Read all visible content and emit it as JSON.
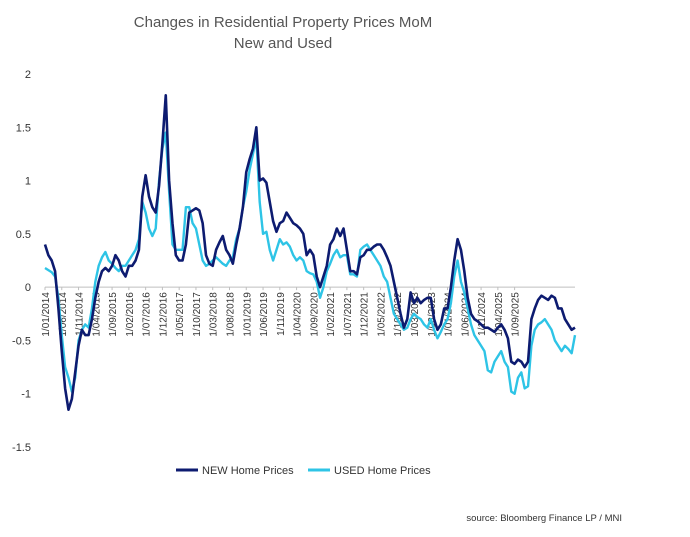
{
  "chart_data": {
    "type": "line",
    "title": "Changes in Residential Property Prices MoM",
    "subtitle": "New and Used",
    "source": "source: Bloomberg Finance LP / MNI",
    "xlabel": "",
    "ylabel": "",
    "ylim": [
      -1.5,
      2
    ],
    "yticks": [
      "2",
      "1.5",
      "1",
      "0.5",
      "0",
      "-0.5",
      "-1",
      "-1.5"
    ],
    "ytick_values": [
      2,
      1.5,
      1,
      0.5,
      0,
      -0.5,
      -1,
      -1.5
    ],
    "xtick_labels": [
      "1/01/2014",
      "1/06/2014",
      "1/11/2014",
      "1/04/2015",
      "1/09/2015",
      "1/02/2016",
      "1/07/2016",
      "1/12/2016",
      "1/05/2017",
      "1/10/2017",
      "1/03/2018",
      "1/08/2018",
      "1/01/2019",
      "1/06/2019",
      "1/11/2019",
      "1/04/2020",
      "1/09/2020",
      "1/02/2021",
      "1/07/2021",
      "1/12/2021",
      "1/05/2022",
      "1/10/2022",
      "1/03/2023",
      "1/08/2023",
      "1/01/2024",
      "1/06/2024",
      "1/11/2024",
      "1/04/2025",
      "1/09/2025"
    ],
    "x_start": "2014-01",
    "x_end": "2025-11",
    "legend_position": "bottom",
    "grid": false,
    "series": [
      {
        "name": "NEW Home Prices",
        "color": "#0d1b70",
        "values": [
          0.4,
          0.3,
          0.25,
          0.15,
          -0.2,
          -0.6,
          -0.95,
          -1.15,
          -1.05,
          -0.8,
          -0.55,
          -0.4,
          -0.45,
          -0.45,
          -0.3,
          -0.1,
          0.05,
          0.15,
          0.18,
          0.15,
          0.2,
          0.3,
          0.25,
          0.15,
          0.1,
          0.2,
          0.2,
          0.25,
          0.35,
          0.85,
          1.05,
          0.85,
          0.75,
          0.7,
          0.95,
          1.35,
          1.8,
          1.0,
          0.6,
          0.3,
          0.25,
          0.25,
          0.4,
          0.7,
          0.72,
          0.74,
          0.72,
          0.6,
          0.3,
          0.22,
          0.2,
          0.35,
          0.42,
          0.48,
          0.35,
          0.3,
          0.22,
          0.4,
          0.55,
          0.75,
          1.08,
          1.2,
          1.3,
          1.5,
          1.0,
          1.02,
          0.98,
          0.8,
          0.62,
          0.52,
          0.6,
          0.62,
          0.7,
          0.65,
          0.6,
          0.58,
          0.55,
          0.5,
          0.3,
          0.35,
          0.3,
          0.1,
          0.0,
          0.1,
          0.2,
          0.4,
          0.45,
          0.55,
          0.48,
          0.55,
          0.35,
          0.15,
          0.15,
          0.12,
          0.28,
          0.3,
          0.35,
          0.35,
          0.38,
          0.4,
          0.4,
          0.35,
          0.28,
          0.2,
          0.05,
          -0.1,
          -0.25,
          -0.38,
          -0.3,
          -0.05,
          -0.15,
          -0.1,
          -0.15,
          -0.12,
          -0.1,
          -0.1,
          -0.3,
          -0.4,
          -0.35,
          -0.2,
          -0.2,
          0.0,
          0.25,
          0.45,
          0.35,
          0.15,
          -0.1,
          -0.25,
          -0.3,
          -0.32,
          -0.35,
          -0.38,
          -0.38,
          -0.4,
          -0.42,
          -0.38,
          -0.35,
          -0.4,
          -0.48,
          -0.7,
          -0.72,
          -0.68,
          -0.7,
          -0.75,
          -0.7,
          -0.3,
          -0.2,
          -0.12,
          -0.08,
          -0.1,
          -0.12,
          -0.08,
          -0.1,
          -0.2,
          -0.2,
          -0.3,
          -0.35,
          -0.4,
          -0.38
        ]
      },
      {
        "name": "USED Home Prices",
        "color": "#2ec4e6",
        "values": [
          0.18,
          0.16,
          0.14,
          0.1,
          -0.1,
          -0.45,
          -0.75,
          -0.85,
          -0.98,
          -0.85,
          -0.5,
          -0.4,
          -0.35,
          -0.38,
          -0.2,
          0.05,
          0.2,
          0.28,
          0.33,
          0.25,
          0.22,
          0.18,
          0.15,
          0.2,
          0.2,
          0.25,
          0.3,
          0.35,
          0.45,
          0.8,
          0.7,
          0.55,
          0.48,
          0.55,
          1.0,
          1.3,
          1.45,
          0.9,
          0.4,
          0.35,
          0.35,
          0.35,
          0.75,
          0.75,
          0.6,
          0.55,
          0.4,
          0.25,
          0.2,
          0.22,
          0.25,
          0.28,
          0.25,
          0.22,
          0.2,
          0.25,
          0.28,
          0.45,
          0.55,
          0.75,
          0.9,
          1.1,
          1.25,
          1.4,
          0.8,
          0.5,
          0.52,
          0.35,
          0.25,
          0.35,
          0.45,
          0.4,
          0.42,
          0.38,
          0.3,
          0.25,
          0.28,
          0.25,
          0.15,
          0.13,
          0.12,
          0.05,
          -0.1,
          0.0,
          0.15,
          0.22,
          0.3,
          0.35,
          0.28,
          0.3,
          0.3,
          0.12,
          0.12,
          0.1,
          0.35,
          0.38,
          0.4,
          0.35,
          0.3,
          0.25,
          0.2,
          0.1,
          0.05,
          -0.1,
          -0.25,
          -0.3,
          -0.35,
          -0.4,
          -0.38,
          -0.3,
          -0.25,
          -0.28,
          -0.3,
          -0.35,
          -0.38,
          -0.3,
          -0.4,
          -0.48,
          -0.42,
          -0.35,
          -0.3,
          -0.15,
          0.1,
          0.25,
          0.05,
          -0.05,
          -0.2,
          -0.35,
          -0.45,
          -0.5,
          -0.55,
          -0.6,
          -0.78,
          -0.8,
          -0.7,
          -0.65,
          -0.6,
          -0.7,
          -0.75,
          -0.98,
          -1.0,
          -0.85,
          -0.8,
          -0.95,
          -0.93,
          -0.55,
          -0.4,
          -0.35,
          -0.33,
          -0.3,
          -0.35,
          -0.4,
          -0.5,
          -0.55,
          -0.6,
          -0.55,
          -0.58,
          -0.62,
          -0.45
        ]
      }
    ]
  }
}
